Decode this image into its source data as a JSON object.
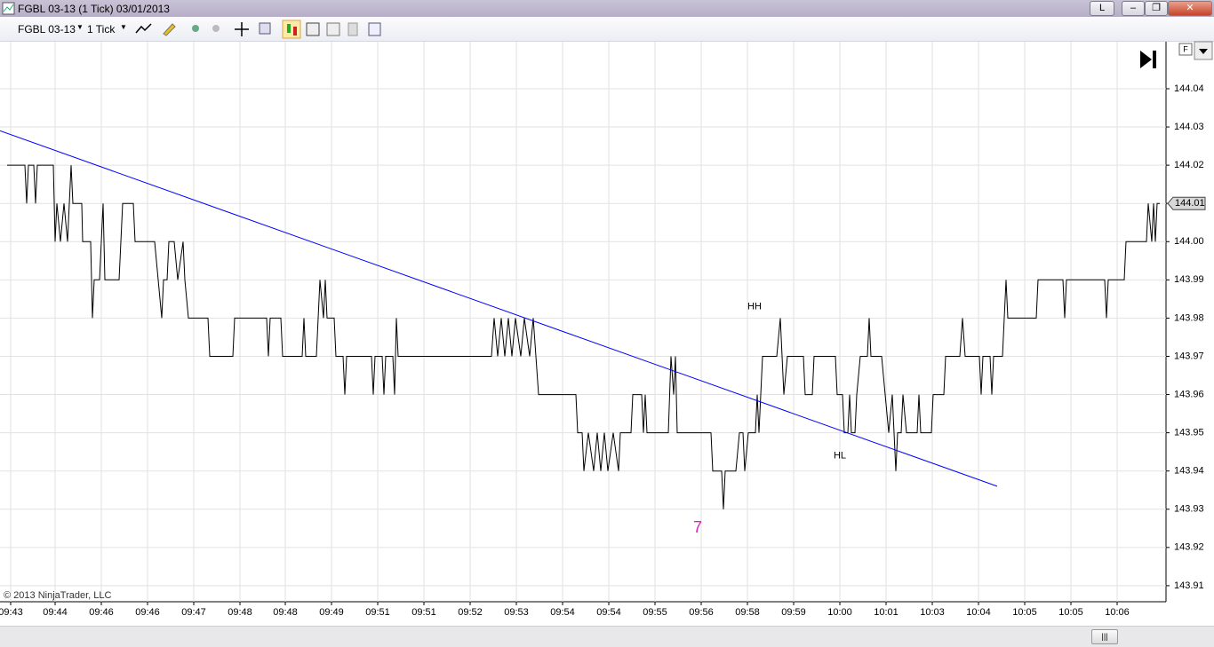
{
  "window": {
    "title": "FGBL 03-13 (1 Tick)  03/01/2013",
    "layout_button": "L"
  },
  "toolbar": {
    "instrument": "FGBL 03-13",
    "period": "1 Tick"
  },
  "panel_button": "F",
  "chart_data": {
    "type": "line",
    "copyright": "© 2013 NinjaTrader, LLC",
    "xlim": [
      0,
      1312
    ],
    "ylim": [
      143.9058,
      144.0523
    ],
    "grid": true,
    "xticks": [
      {
        "value": 12,
        "label": "09:43"
      },
      {
        "value": 62,
        "label": "09:44"
      },
      {
        "value": 114,
        "label": "09:46"
      },
      {
        "value": 166,
        "label": "09:46"
      },
      {
        "value": 218,
        "label": "09:47"
      },
      {
        "value": 270,
        "label": "09:48"
      },
      {
        "value": 321,
        "label": "09:48"
      },
      {
        "value": 373,
        "label": "09:49"
      },
      {
        "value": 425,
        "label": "09:51"
      },
      {
        "value": 477,
        "label": "09:51"
      },
      {
        "value": 529,
        "label": "09:52"
      },
      {
        "value": 581,
        "label": "09:53"
      },
      {
        "value": 633,
        "label": "09:54"
      },
      {
        "value": 685,
        "label": "09:54"
      },
      {
        "value": 737,
        "label": "09:55"
      },
      {
        "value": 789,
        "label": "09:56"
      },
      {
        "value": 841,
        "label": "09:58"
      },
      {
        "value": 893,
        "label": "09:59"
      },
      {
        "value": 945,
        "label": "10:00"
      },
      {
        "value": 997,
        "label": "10:01"
      },
      {
        "value": 1049,
        "label": "10:03"
      },
      {
        "value": 1101,
        "label": "10:04"
      },
      {
        "value": 1153,
        "label": "10:05"
      },
      {
        "value": 1205,
        "label": "10:05"
      },
      {
        "value": 1257,
        "label": "10:06"
      }
    ],
    "yticks": [
      143.91,
      143.92,
      143.93,
      143.94,
      143.95,
      143.96,
      143.97,
      143.98,
      143.99,
      {
        "value": 144,
        "label": "144.00"
      },
      144.01,
      144.02,
      144.03,
      144.04
    ],
    "series": [
      {
        "color": "#000000",
        "x": [
          8,
          28,
          30,
          32,
          38,
          40,
          42,
          60,
          62,
          64,
          68,
          72,
          76,
          78,
          80,
          82,
          92,
          93,
          102,
          104,
          106,
          112,
          116,
          118,
          134,
          138,
          150,
          152,
          174,
          178,
          182,
          184,
          188,
          190,
          196,
          200,
          206,
          208,
          212,
          234,
          236,
          262,
          264,
          300,
          302,
          304,
          316,
          318,
          340,
          342,
          344,
          356,
          358,
          360,
          364,
          366,
          368,
          376,
          378,
          386,
          388,
          390,
          418,
          420,
          422,
          430,
          432,
          434,
          442,
          444,
          446,
          448,
          553,
          556,
          560,
          564,
          568,
          572,
          576,
          580,
          586,
          590,
          596,
          600,
          603,
          606,
          648,
          650,
          655,
          657,
          662,
          668,
          672,
          676,
          680,
          684,
          690,
          696,
          698,
          710,
          712,
          722,
          724,
          726,
          728,
          752,
          755,
          758,
          760,
          762,
          800,
          802,
          812,
          814,
          816,
          828,
          832,
          836,
          838,
          842,
          850,
          852,
          854,
          858,
          874,
          878,
          882,
          886,
          904,
          906,
          914,
          916,
          940,
          942,
          948,
          950,
          954,
          956,
          958,
          962,
          964,
          968,
          976,
          978,
          980,
          992,
          996,
          1000,
          1004,
          1008,
          1010,
          1014,
          1016,
          1020,
          1032,
          1034,
          1036,
          1048,
          1050,
          1062,
          1064,
          1080,
          1083,
          1086,
          1102,
          1104,
          1106,
          1114,
          1116,
          1118,
          1128,
          1130,
          1132,
          1134,
          1166,
          1168,
          1196,
          1198,
          1200,
          1243,
          1245,
          1247,
          1265,
          1267,
          1290,
          1292,
          1296,
          1298,
          1300,
          1302,
          1305
        ],
        "values": [
          144.02,
          144.02,
          144.01,
          144.02,
          144.02,
          144.01,
          144.02,
          144.02,
          144.0,
          144.01,
          144.0,
          144.01,
          144.0,
          144.01,
          144.02,
          144.01,
          144.01,
          144.0,
          144.0,
          143.98,
          143.99,
          143.99,
          144.01,
          143.99,
          143.99,
          144.01,
          144.01,
          144.0,
          144.0,
          143.99,
          143.98,
          143.99,
          143.99,
          144.0,
          144.0,
          143.99,
          144.0,
          143.99,
          143.98,
          143.98,
          143.97,
          143.97,
          143.98,
          143.98,
          143.97,
          143.98,
          143.98,
          143.97,
          143.97,
          143.98,
          143.97,
          143.97,
          143.98,
          143.99,
          143.98,
          143.99,
          143.98,
          143.98,
          143.97,
          143.97,
          143.96,
          143.97,
          143.97,
          143.96,
          143.97,
          143.97,
          143.96,
          143.97,
          143.97,
          143.96,
          143.98,
          143.97,
          143.97,
          143.98,
          143.97,
          143.98,
          143.97,
          143.98,
          143.97,
          143.98,
          143.97,
          143.98,
          143.97,
          143.98,
          143.97,
          143.96,
          143.96,
          143.95,
          143.95,
          143.94,
          143.95,
          143.94,
          143.95,
          143.94,
          143.95,
          143.94,
          143.95,
          143.94,
          143.95,
          143.95,
          143.96,
          143.96,
          143.95,
          143.96,
          143.95,
          143.95,
          143.97,
          143.96,
          143.97,
          143.95,
          143.95,
          143.94,
          143.94,
          143.93,
          143.94,
          143.94,
          143.95,
          143.95,
          143.94,
          143.95,
          143.95,
          143.96,
          143.95,
          143.97,
          143.97,
          143.98,
          143.96,
          143.97,
          143.97,
          143.96,
          143.96,
          143.97,
          143.97,
          143.96,
          143.96,
          143.95,
          143.95,
          143.96,
          143.95,
          143.95,
          143.96,
          143.97,
          143.97,
          143.98,
          143.97,
          143.97,
          143.96,
          143.95,
          143.96,
          143.94,
          143.95,
          143.95,
          143.96,
          143.95,
          143.95,
          143.96,
          143.95,
          143.95,
          143.96,
          143.96,
          143.97,
          143.97,
          143.98,
          143.97,
          143.97,
          143.96,
          143.97,
          143.97,
          143.96,
          143.97,
          143.97,
          143.98,
          143.99,
          143.98,
          143.98,
          143.99,
          143.99,
          143.98,
          143.99,
          143.99,
          143.98,
          143.99,
          143.99,
          144.0,
          144.0,
          144.01,
          144.0,
          144.01,
          144.0,
          144.01,
          144.01
        ]
      }
    ],
    "trendline": {
      "color": "#0000ff",
      "x": [
        0,
        1122
      ],
      "values": [
        144.029,
        143.936
      ]
    },
    "last_price": 144.01,
    "annotations": [
      {
        "text": "HH",
        "x": 849,
        "y": 143.983,
        "color": "#000000"
      },
      {
        "text": "HL",
        "x": 945,
        "y": 143.944,
        "color": "#000000"
      },
      {
        "text": "7",
        "x": 785,
        "y": 143.925,
        "color": "#e020c0"
      }
    ]
  }
}
